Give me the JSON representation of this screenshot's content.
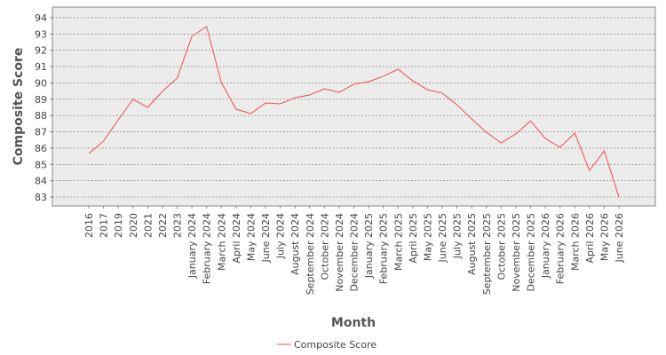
{
  "chart_data": {
    "type": "line",
    "x_label": "Month",
    "y_label": "Composite Score",
    "categories": [
      "2016",
      "2017",
      "2019",
      "2020",
      "2021",
      "2022",
      "2023",
      "January 2024",
      "February 2024",
      "March 2024",
      "April 2024",
      "May 2024",
      "June 2024",
      "July 2024",
      "August 2024",
      "September 2024",
      "October 2024",
      "November 2024",
      "December 2024",
      "January 2025",
      "February 2025",
      "March 2025",
      "April 2025",
      "May 2025",
      "June 2025",
      "July 2025",
      "August 2025",
      "September 2025",
      "October 2025",
      "November 2025",
      "December 2025",
      "January 2026",
      "February 2026",
      "March 2026",
      "April 2026",
      "May 2026",
      "June 2026"
    ],
    "series": [
      {
        "name": "Composite Score",
        "color": "#f44c4c",
        "values": [
          85.67,
          86.43,
          87.74,
          88.99,
          88.5,
          89.48,
          90.3,
          92.86,
          93.46,
          90.02,
          88.39,
          88.12,
          88.77,
          88.72,
          89.1,
          89.26,
          89.64,
          89.42,
          89.92,
          90.08,
          90.41,
          90.84,
          90.13,
          89.59,
          89.37,
          88.66,
          87.79,
          86.97,
          86.32,
          86.87,
          87.68,
          86.59,
          86.05,
          86.92,
          84.63,
          85.83,
          83.0
        ]
      }
    ],
    "ylim": [
      82.46,
      94.65
    ],
    "yticks": [
      83,
      84,
      85,
      86,
      87,
      88,
      89,
      90,
      91,
      92,
      93,
      94
    ],
    "grid": true,
    "legend": "bottom"
  }
}
